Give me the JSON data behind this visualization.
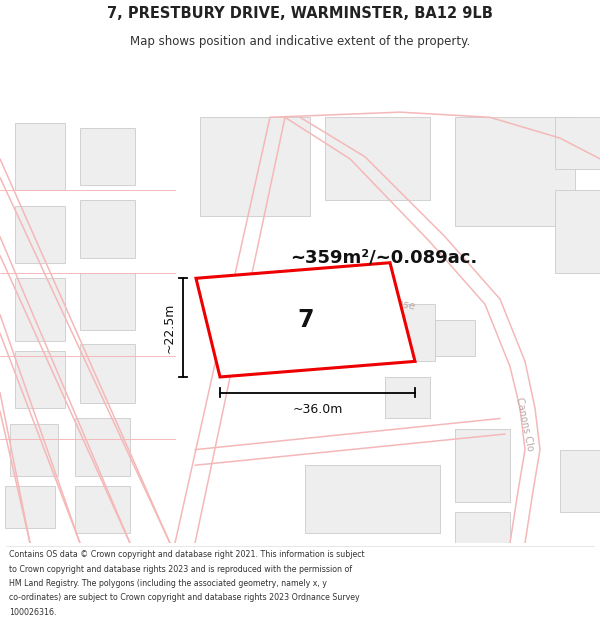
{
  "title_line1": "7, PRESTBURY DRIVE, WARMINSTER, BA12 9LB",
  "title_line2": "Map shows position and indicative extent of the property.",
  "area_label": "~359m²/~0.089ac.",
  "plot_number": "7",
  "dim_width": "~36.0m",
  "dim_height": "~22.5m",
  "footer_lines": [
    "Contains OS data © Crown copyright and database right 2021. This information is subject",
    "to Crown copyright and database rights 2023 and is reproduced with the permission of",
    "HM Land Registry. The polygons (including the associated geometry, namely x, y",
    "co-ordinates) are subject to Crown copyright and database rights 2023 Ordnance Survey",
    "100026316."
  ],
  "bg_color": "#ffffff",
  "road_color": "#f5b8b8",
  "building_fill": "#eeeeee",
  "building_edge": "#cccccc",
  "plot_color": "#ee0000",
  "label_color": "#bbaaaa",
  "map_bg": "#ffffff"
}
